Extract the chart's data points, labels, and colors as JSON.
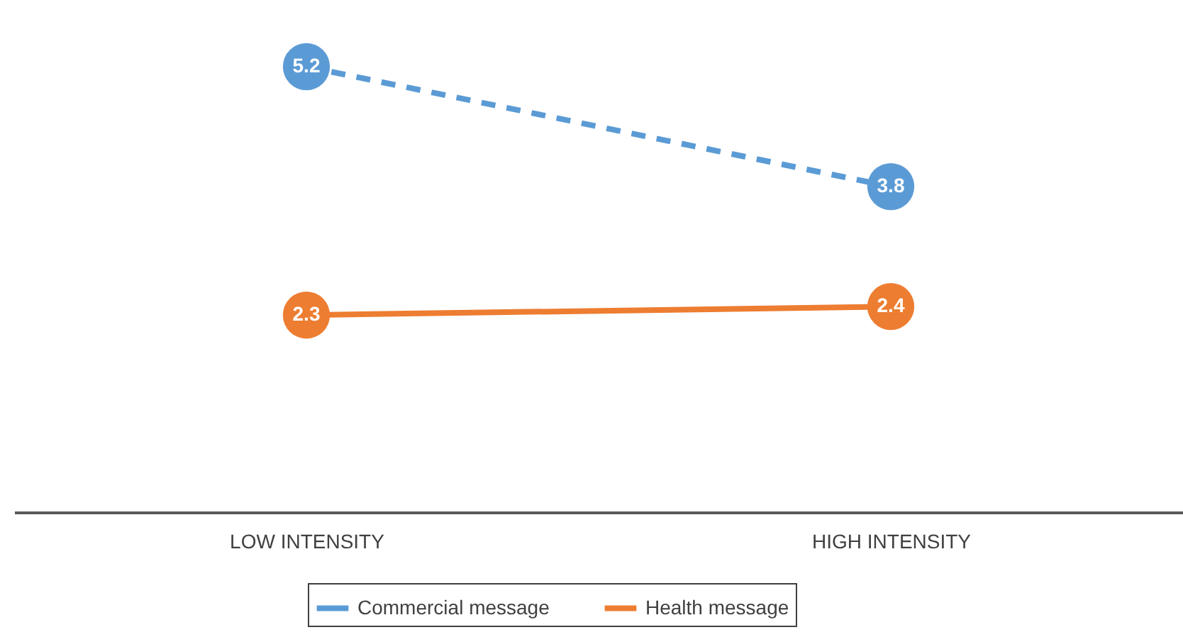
{
  "chart_data": {
    "type": "line",
    "categories": [
      "LOW INTENSITY",
      "HIGH INTENSITY"
    ],
    "series": [
      {
        "name": "Commercial message",
        "color": "#5b9bd5",
        "values": [
          5.2,
          3.8
        ],
        "line_style": "dashed"
      },
      {
        "name": "Health message",
        "color": "#ed7d31",
        "values": [
          2.3,
          2.4
        ],
        "line_style": "solid"
      }
    ],
    "data_labels": true,
    "marker": "circle",
    "legend": "bottom",
    "grid": false
  }
}
